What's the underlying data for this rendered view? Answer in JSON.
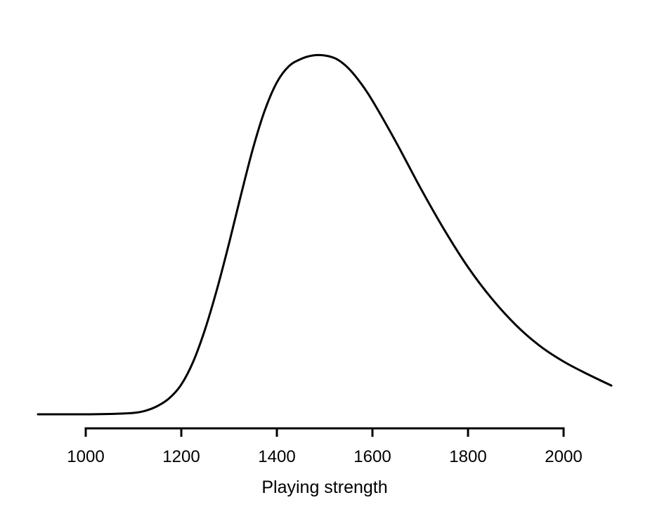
{
  "chart_data": {
    "type": "line",
    "title": "",
    "xlabel": "Playing strength",
    "ylabel": "",
    "xlim": [
      900,
      2100
    ],
    "ylim": [
      0,
      1
    ],
    "grid": false,
    "x_ticks": [
      1000,
      1200,
      1400,
      1600,
      1800,
      2000
    ],
    "x_tick_labels": [
      "1000",
      "1200",
      "1400",
      "1600",
      "1800",
      "2000"
    ],
    "y_axis_shown": false,
    "series": [
      {
        "x": [
          900,
          1000,
          1050,
          1100,
          1125,
          1150,
          1175,
          1200,
          1225,
          1250,
          1275,
          1300,
          1325,
          1350,
          1375,
          1400,
          1425,
          1450,
          1475,
          1500,
          1525,
          1550,
          1575,
          1600,
          1650,
          1700,
          1750,
          1800,
          1850,
          1900,
          1950,
          2000,
          2050,
          2100
        ],
        "y": [
          0.0,
          0.0,
          0.001,
          0.004,
          0.01,
          0.023,
          0.045,
          0.083,
          0.147,
          0.238,
          0.35,
          0.477,
          0.612,
          0.741,
          0.848,
          0.925,
          0.97,
          0.99,
          1.0,
          1.0,
          0.99,
          0.964,
          0.924,
          0.874,
          0.757,
          0.632,
          0.515,
          0.41,
          0.322,
          0.249,
          0.191,
          0.147,
          0.112,
          0.08
        ]
      }
    ]
  }
}
